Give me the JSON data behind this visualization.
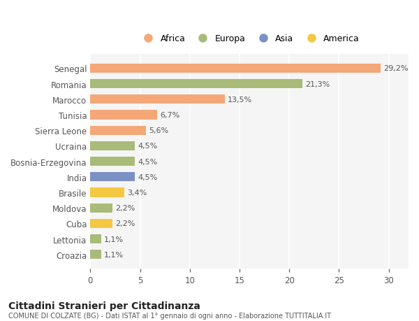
{
  "countries": [
    "Senegal",
    "Romania",
    "Marocco",
    "Tunisia",
    "Sierra Leone",
    "Ucraina",
    "Bosnia-Erzegovina",
    "India",
    "Brasile",
    "Moldova",
    "Cuba",
    "Lettonia",
    "Croazia"
  ],
  "values": [
    29.2,
    21.3,
    13.5,
    6.7,
    5.6,
    4.5,
    4.5,
    4.5,
    3.4,
    2.2,
    2.2,
    1.1,
    1.1
  ],
  "labels": [
    "29,2%",
    "21,3%",
    "13,5%",
    "6,7%",
    "5,6%",
    "4,5%",
    "4,5%",
    "4,5%",
    "3,4%",
    "2,2%",
    "2,2%",
    "1,1%",
    "1,1%"
  ],
  "colors": [
    "#F4A878",
    "#A8BB78",
    "#F4A878",
    "#F4A878",
    "#F4A878",
    "#A8BB78",
    "#A8BB78",
    "#7B90C4",
    "#F5C842",
    "#A8BB78",
    "#F5C842",
    "#A8BB78",
    "#A8BB78"
  ],
  "legend_labels": [
    "Africa",
    "Europa",
    "Asia",
    "America"
  ],
  "legend_colors": [
    "#F4A878",
    "#A8BB78",
    "#7B90C4",
    "#F5C842"
  ],
  "title": "Cittadini Stranieri per Cittadinanza",
  "subtitle": "COMUNE DI COLZATE (BG) - Dati ISTAT al 1° gennaio di ogni anno - Elaborazione TUTTITALIA.IT",
  "xlim": [
    0,
    32
  ],
  "xticks": [
    0,
    5,
    10,
    15,
    20,
    25,
    30
  ],
  "background_color": "#ffffff",
  "plot_bg_color": "#f5f5f5"
}
